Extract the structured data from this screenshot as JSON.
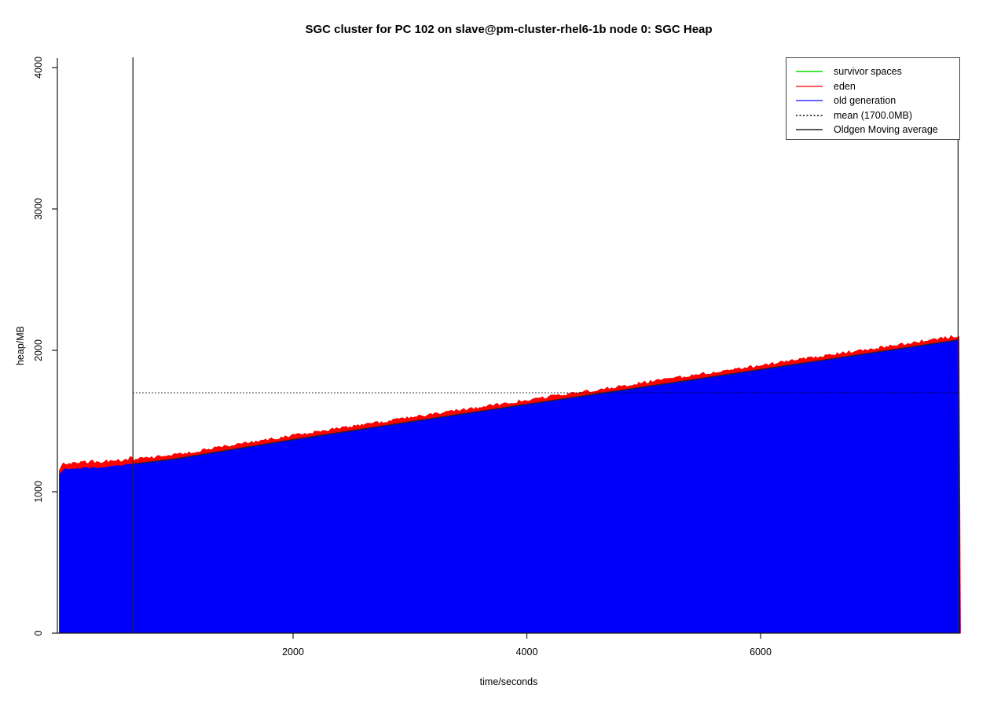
{
  "chart_data": {
    "type": "area",
    "title": "SGC cluster for PC 102 on slave@pm-cluster-rhel6-1b node 0: SGC Heap",
    "xlabel": "time/seconds",
    "ylabel": "heap/MB",
    "xlim": [
      0,
      7710
    ],
    "ylim": [
      0,
      4100
    ],
    "x_ticks": [
      2000,
      4000,
      6000
    ],
    "y_ticks": [
      0,
      1000,
      2000,
      3000,
      4000
    ],
    "grid": false,
    "legend_position": "top-right",
    "series": [
      {
        "name": "survivor spaces",
        "type": "line",
        "color": "#00DD00",
        "note": "not visibly above zero in plot"
      },
      {
        "name": "eden",
        "type": "area",
        "color": "#FF0000",
        "band_above_old_generation_mb": 38,
        "jitter_mb": 14
      },
      {
        "name": "old generation",
        "type": "area",
        "color": "#0000FA",
        "points": [
          [
            0,
            1125
          ],
          [
            40,
            1160
          ],
          [
            200,
            1168
          ],
          [
            400,
            1175
          ],
          [
            630,
            1200
          ],
          [
            1000,
            1237
          ],
          [
            1500,
            1305
          ],
          [
            2000,
            1372
          ],
          [
            2500,
            1435
          ],
          [
            3000,
            1498
          ],
          [
            3500,
            1560
          ],
          [
            4000,
            1622
          ],
          [
            4500,
            1683
          ],
          [
            5000,
            1745
          ],
          [
            5500,
            1806
          ],
          [
            6000,
            1868
          ],
          [
            6500,
            1930
          ],
          [
            7000,
            1992
          ],
          [
            7350,
            2035
          ],
          [
            7710,
            2080
          ]
        ]
      },
      {
        "name": "mean (1700.0MB)",
        "type": "hline",
        "color": "#000000",
        "style": "dotted",
        "value": 1700,
        "x_range_seconds": [
          630,
          7690
        ]
      },
      {
        "name": "Oldgen Moving average",
        "type": "line",
        "color": "#262626",
        "style": "solid",
        "x_range_seconds": [
          630,
          7690
        ],
        "vertical_boundary_lines": true
      }
    ]
  },
  "legend": {
    "items": [
      {
        "label": "survivor spaces",
        "color": "#00DD00",
        "style": "solid"
      },
      {
        "label": "eden",
        "color": "#FF2222",
        "style": "solid"
      },
      {
        "label": "old generation",
        "color": "#3333FF",
        "style": "solid"
      },
      {
        "label": "mean (1700.0MB)",
        "color": "#000000",
        "style": "dotted"
      },
      {
        "label": "Oldgen Moving average",
        "color": "#262626",
        "style": "solid"
      }
    ]
  }
}
